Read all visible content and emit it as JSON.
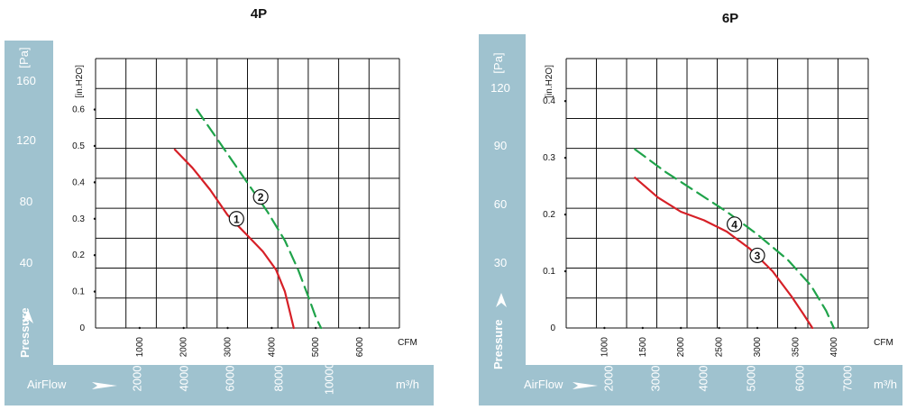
{
  "chart_data": [
    {
      "type": "line",
      "title": "4P",
      "x_unit": "CFM",
      "x_ticks": [
        "1000",
        "2000",
        "3000",
        "4000",
        "5000",
        "6000"
      ],
      "x_min": 0,
      "x_max": 6900,
      "y_unit": "[in.H2O]",
      "y_ticks": [
        "0",
        "0.1",
        "0.2",
        "0.3",
        "0.4",
        "0.5",
        "0.6"
      ],
      "y_min": 0,
      "y_max": 0.74,
      "pa_unit": "[Pa]",
      "pa_ticks": [
        "40",
        "80",
        "120",
        "160"
      ],
      "pressure_label": "Pressure",
      "airflow_label": "AirFlow",
      "m3h_unit": "m³/h",
      "m3h_ticks": [
        "2000",
        "4000",
        "6000",
        "8000",
        "10000"
      ],
      "series": [
        {
          "marker": "①",
          "color": "#d62027",
          "dash": "solid",
          "x": [
            1800,
            2200,
            2600,
            3000,
            3400,
            3800,
            4100,
            4300,
            4420,
            4500
          ],
          "y": [
            0.49,
            0.44,
            0.38,
            0.31,
            0.26,
            0.21,
            0.16,
            0.1,
            0.04,
            0.0
          ]
        },
        {
          "marker": "②",
          "color": "#1fa34a",
          "dash": "dashed",
          "x": [
            2300,
            2700,
            3100,
            3500,
            3900,
            4300,
            4600,
            4850,
            5000,
            5120
          ],
          "y": [
            0.6,
            0.53,
            0.46,
            0.39,
            0.32,
            0.24,
            0.16,
            0.08,
            0.03,
            0.0
          ]
        }
      ],
      "marker_points": [
        [
          3200,
          0.3
        ],
        [
          3750,
          0.36
        ]
      ]
    },
    {
      "type": "line",
      "title": "6P",
      "x_unit": "CFM",
      "x_ticks": [
        "1000",
        "1500",
        "2000",
        "2500",
        "3000",
        "3500",
        "4000"
      ],
      "x_min": 500,
      "x_max": 4450,
      "y_unit": "[in.H2O]",
      "y_ticks": [
        "0",
        "0.1",
        "0.2",
        "0.3",
        "0.4"
      ],
      "y_min": 0,
      "y_max": 0.475,
      "pa_unit": "[Pa]",
      "pa_ticks": [
        "30",
        "60",
        "90",
        "120"
      ],
      "pressure_label": "Pressure",
      "airflow_label": "AirFlow",
      "m3h_unit": "m³/h",
      "m3h_ticks": [
        "2000",
        "3000",
        "4000",
        "5000",
        "6000",
        "7000"
      ],
      "series": [
        {
          "marker": "③",
          "color": "#d62027",
          "dash": "solid",
          "x": [
            1400,
            1700,
            2000,
            2300,
            2600,
            2900,
            3200,
            3450,
            3600,
            3720
          ],
          "y": [
            0.265,
            0.23,
            0.205,
            0.19,
            0.17,
            0.14,
            0.1,
            0.055,
            0.025,
            0.0
          ]
        },
        {
          "marker": "④",
          "color": "#1fa34a",
          "dash": "dashed",
          "x": [
            1400,
            1800,
            2200,
            2600,
            3000,
            3400,
            3700,
            3900,
            4000
          ],
          "y": [
            0.315,
            0.275,
            0.24,
            0.205,
            0.165,
            0.12,
            0.075,
            0.03,
            0.0
          ]
        }
      ],
      "marker_points": [
        [
          3000,
          0.128
        ],
        [
          2700,
          0.183
        ]
      ]
    }
  ]
}
